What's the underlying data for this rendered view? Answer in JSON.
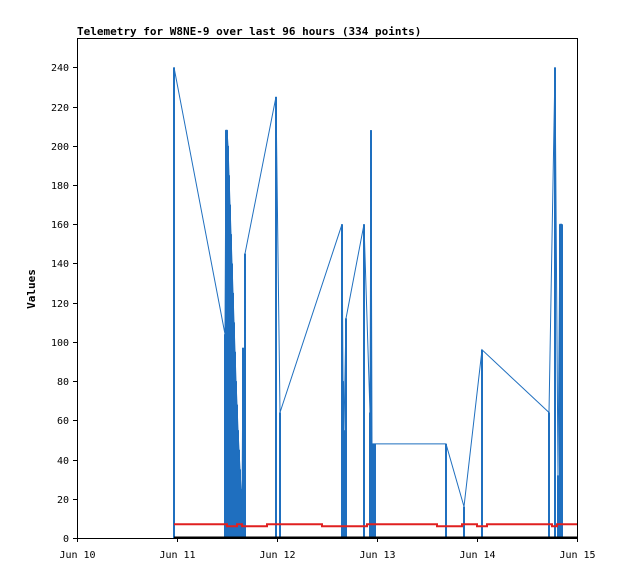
{
  "chart_data": {
    "type": "line",
    "title": "Telemetry for W8NE-9 over last 96 hours (334 points)",
    "xlabel": "",
    "ylabel": "Values",
    "x_tick_labels": [
      "Jun 10",
      "Jun 11",
      "Jun 12",
      "Jun 13",
      "Jun 14",
      "Jun 15"
    ],
    "xlim": [
      0,
      5
    ],
    "ylim": [
      0,
      255
    ],
    "y_ticks": [
      0,
      20,
      40,
      60,
      80,
      100,
      120,
      140,
      160,
      180,
      200,
      220,
      240
    ],
    "grid": false,
    "colors": {
      "spikes": "#1f6fbf",
      "baseline": "#e02020",
      "zero": "#000000"
    },
    "series": [
      {
        "style": "spikes",
        "x": [
          0.97,
          1.48,
          1.49,
          1.5,
          1.51,
          1.52,
          1.53,
          1.54,
          1.55,
          1.56,
          1.57,
          1.58,
          1.59,
          1.6,
          1.61,
          1.62,
          1.63,
          1.64,
          1.65,
          1.66,
          1.67,
          1.68,
          1.7,
          1.99,
          2.03,
          2.65,
          2.66,
          2.67,
          2.69,
          2.87,
          2.93,
          2.94,
          2.95,
          2.96,
          2.98,
          3.69,
          3.87,
          4.05,
          4.72,
          4.78,
          4.81,
          4.83,
          4.84,
          4.85
        ],
        "y": [
          240,
          104,
          208,
          208,
          200,
          185,
          170,
          155,
          140,
          125,
          110,
          95,
          80,
          68,
          55,
          45,
          35,
          25,
          15,
          97,
          30,
          145,
          0,
          225,
          64,
          160,
          80,
          55,
          112,
          160,
          64,
          208,
          48,
          48,
          48,
          48,
          16,
          96,
          64,
          240,
          32,
          160,
          160,
          160
        ]
      },
      {
        "style": "line",
        "x": [
          0.97,
          1.0,
          1.2,
          1.45,
          1.5,
          1.6,
          1.65,
          1.75,
          1.85,
          1.9,
          2.0,
          2.1,
          2.3,
          2.4,
          2.45,
          2.6,
          2.8,
          2.9,
          3.0,
          3.2,
          3.4,
          3.5,
          3.6,
          3.7,
          3.8,
          3.85,
          3.95,
          4.0,
          4.1,
          4.3,
          4.5,
          4.6,
          4.7,
          4.75,
          4.8,
          4.85,
          4.9,
          5.0
        ],
        "y": [
          7,
          7,
          7,
          7,
          6,
          7,
          6,
          6,
          6,
          7,
          7,
          7,
          7,
          7,
          6,
          6,
          6,
          7,
          7,
          7,
          7,
          7,
          6,
          6,
          6,
          7,
          7,
          6,
          7,
          7,
          7,
          7,
          7,
          6,
          7,
          7,
          7,
          7
        ]
      },
      {
        "style": "zero",
        "x": [
          0.97,
          5.0
        ],
        "y": [
          0,
          0
        ]
      }
    ]
  }
}
